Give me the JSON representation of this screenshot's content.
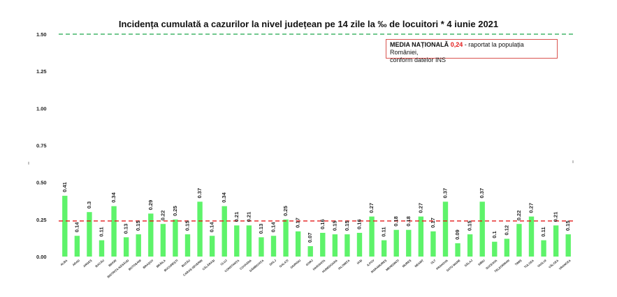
{
  "chart_data": {
    "type": "bar",
    "title": "Incidența cumulată a cazurilor la nivel județean pe 14 zile la ‰ de locuitori *  4 iunie 2021",
    "categories": [
      "ALBA",
      "ARAD",
      "ARGEȘ",
      "BACĂU",
      "BIHOR",
      "BISTRIȚA-NĂSĂUD",
      "BOTOȘANI",
      "BRAȘOV",
      "BRĂILA",
      "BUCUREȘTI",
      "BUZĂU",
      "CARAȘ-SEVERIN",
      "CĂLĂRAȘI",
      "CLUJ",
      "CONSTANȚA",
      "COVASNA",
      "DÂMBOVIȚA",
      "DOLJ",
      "GALAȚI",
      "GIURGIU",
      "GORJ",
      "HARGHITA",
      "HUNEDOARA",
      "IALOMIȚA",
      "IAȘI",
      "ILFOV",
      "MARAMUREȘ",
      "MEHEDINȚI",
      "MUREȘ",
      "NEAMȚ",
      "OLT",
      "PRAHOVA",
      "SATU MARE",
      "SĂLAJ",
      "SIBIU",
      "SUCEAVA",
      "TELEORMAN",
      "TIMIȘ",
      "TULCEA",
      "VASLUI",
      "VÂLCEA",
      "VRANCEA"
    ],
    "values": [
      0.41,
      0.14,
      0.3,
      0.11,
      0.34,
      0.13,
      0.15,
      0.29,
      0.22,
      0.25,
      0.15,
      0.37,
      0.14,
      0.34,
      0.21,
      0.21,
      0.13,
      0.14,
      0.25,
      0.17,
      0.07,
      0.16,
      0.15,
      0.15,
      0.16,
      0.27,
      0.11,
      0.18,
      0.18,
      0.27,
      0.17,
      0.37,
      0.09,
      0.15,
      0.37,
      0.1,
      0.12,
      0.22,
      0.27,
      0.11,
      0.21,
      0.15
    ],
    "ylim": [
      0,
      1.5
    ],
    "yticks": [
      "0.00",
      "0.25",
      "0.50",
      "0.75",
      "1.00",
      "1.25",
      "1.50"
    ],
    "reference_lines": [
      {
        "value": 1.5,
        "color": "#1fa84a",
        "style": "dashed"
      },
      {
        "value": 0.24,
        "color": "#e31b1b",
        "style": "dashed"
      }
    ],
    "bar_color": "#5ef36a",
    "grid": false,
    "legend": "top-right"
  },
  "legend_box": {
    "label_prefix": "MEDIA NAȚIONALĂ",
    "value": "0,24",
    "suffix": "- raportat la populația României,",
    "line2": "conform datelor INS"
  }
}
